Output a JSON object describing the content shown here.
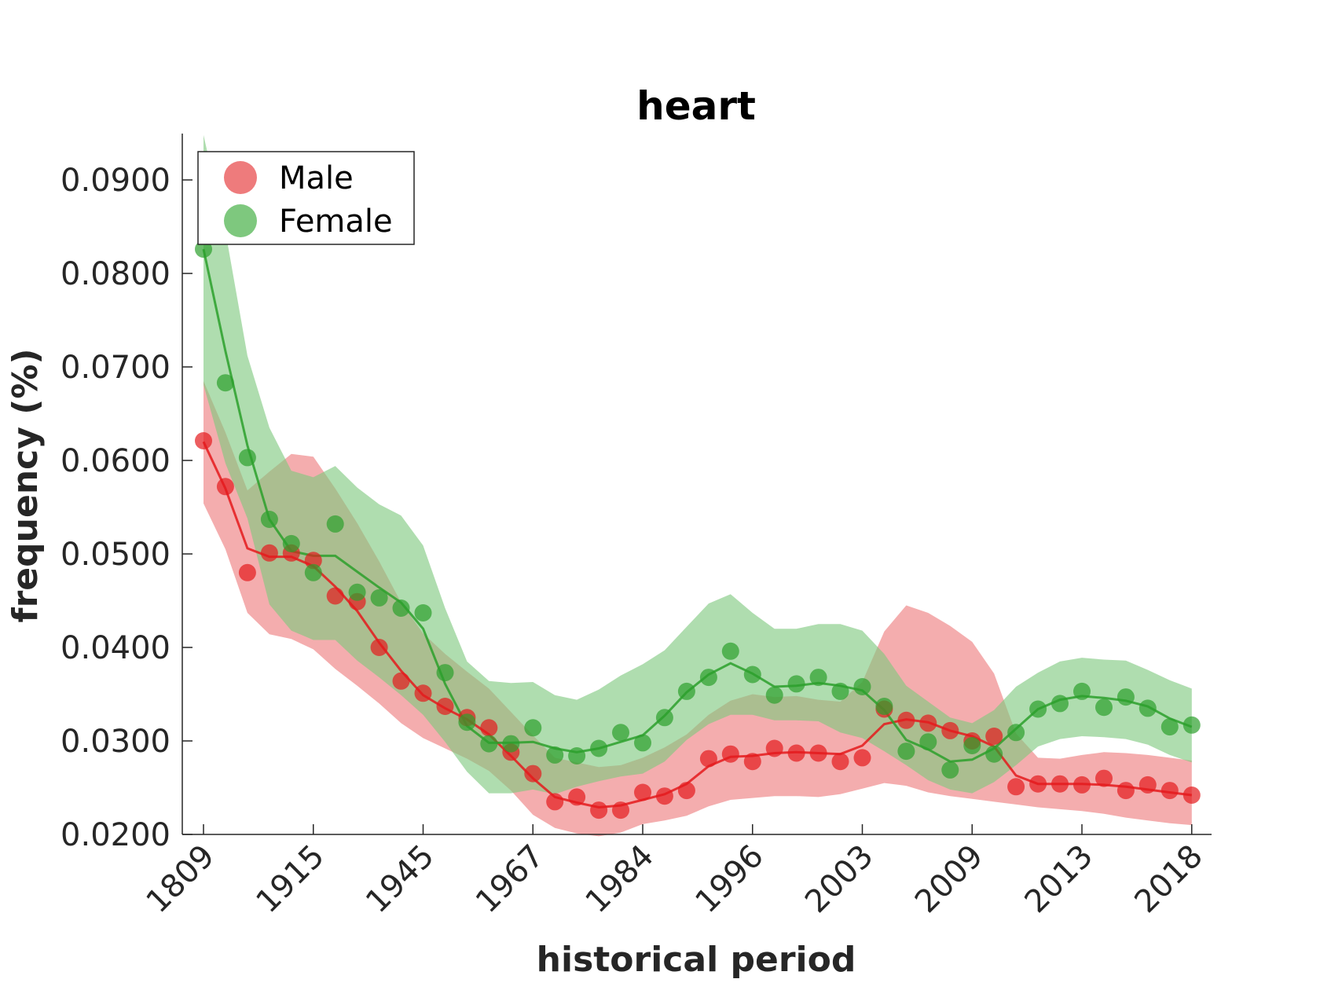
{
  "chart_data": {
    "type": "line",
    "title": "heart",
    "xlabel": "historical period",
    "ylabel": "frequency (%)",
    "ylim": [
      0.02,
      0.095
    ],
    "y_ticks": [
      "0.0200",
      "0.0300",
      "0.0400",
      "0.0500",
      "0.0600",
      "0.0700",
      "0.0800",
      "0.0900"
    ],
    "y_tick_values": [
      0.02,
      0.03,
      0.04,
      0.05,
      0.06,
      0.07,
      0.08,
      0.09
    ],
    "x_ticks": [
      "1809",
      "1915",
      "1945",
      "1967",
      "1984",
      "1996",
      "2003",
      "2009",
      "2013",
      "2018"
    ],
    "x_tick_index": [
      0,
      5,
      10,
      15,
      20,
      25,
      30,
      35,
      40,
      45
    ],
    "n_points": 46,
    "legend_position": "top-left",
    "grid": false,
    "series": [
      {
        "name": "Male",
        "color": "#e41a1c",
        "band_color": "#ee7b7c",
        "points": [
          0.0621,
          0.0572,
          0.048,
          0.0501,
          0.0501,
          0.0493,
          0.0455,
          0.0449,
          0.04,
          0.0364,
          0.0351,
          0.0337,
          0.0325,
          0.0314,
          0.0288,
          0.0265,
          0.0235,
          0.024,
          0.0226,
          0.0226,
          0.0245,
          0.0241,
          0.0247,
          0.0281,
          0.0286,
          0.0278,
          0.0292,
          0.0287,
          0.0287,
          0.0278,
          0.0282,
          0.0334,
          0.0322,
          0.0319,
          0.0311,
          0.03,
          0.0305,
          0.0251,
          0.0254,
          0.0254,
          0.0253,
          0.026,
          0.0247,
          0.0253,
          0.0247,
          0.0242
        ],
        "line": [
          0.062,
          0.057,
          0.0506,
          0.0497,
          0.0497,
          0.0487,
          0.0465,
          0.0439,
          0.0405,
          0.0375,
          0.0349,
          0.0335,
          0.0323,
          0.0307,
          0.0284,
          0.026,
          0.024,
          0.0234,
          0.0229,
          0.0231,
          0.0237,
          0.0243,
          0.0254,
          0.0273,
          0.0283,
          0.0284,
          0.0287,
          0.0288,
          0.0287,
          0.0286,
          0.0295,
          0.0318,
          0.0323,
          0.032,
          0.0311,
          0.0305,
          0.0294,
          0.0263,
          0.0254,
          0.0254,
          0.0254,
          0.0253,
          0.0251,
          0.0248,
          0.0245,
          0.0242
        ],
        "upper": [
          0.0685,
          0.063,
          0.0568,
          0.0588,
          0.0607,
          0.0604,
          0.057,
          0.0533,
          0.0492,
          0.0448,
          0.0415,
          0.0393,
          0.0374,
          0.0356,
          0.0331,
          0.0306,
          0.0282,
          0.0277,
          0.0272,
          0.0274,
          0.0282,
          0.0293,
          0.0307,
          0.0328,
          0.0343,
          0.035,
          0.0347,
          0.0348,
          0.0344,
          0.0342,
          0.0363,
          0.0417,
          0.0445,
          0.0437,
          0.0423,
          0.0406,
          0.0372,
          0.0308,
          0.0282,
          0.0281,
          0.0285,
          0.0288,
          0.0287,
          0.0285,
          0.0282,
          0.0279
        ],
        "lower": [
          0.0554,
          0.0505,
          0.0437,
          0.0414,
          0.0409,
          0.0398,
          0.0377,
          0.0359,
          0.034,
          0.0319,
          0.0303,
          0.0292,
          0.0281,
          0.0268,
          0.0247,
          0.0221,
          0.0207,
          0.0201,
          0.0198,
          0.0202,
          0.0211,
          0.0215,
          0.022,
          0.023,
          0.0237,
          0.0239,
          0.0241,
          0.0241,
          0.024,
          0.0243,
          0.0249,
          0.0255,
          0.0252,
          0.0245,
          0.0241,
          0.0238,
          0.0235,
          0.0232,
          0.0229,
          0.0227,
          0.0225,
          0.0222,
          0.0218,
          0.0215,
          0.0212,
          0.021
        ]
      },
      {
        "name": "Female",
        "color": "#2ca02c",
        "band_color": "#7ec87e",
        "points": [
          0.0826,
          0.0683,
          0.0603,
          0.0537,
          0.0511,
          0.048,
          0.0532,
          0.0459,
          0.0453,
          0.0442,
          0.0437,
          0.0373,
          0.032,
          0.0297,
          0.0297,
          0.0314,
          0.0285,
          0.0284,
          0.0292,
          0.0309,
          0.0298,
          0.0325,
          0.0353,
          0.0368,
          0.0396,
          0.0371,
          0.0349,
          0.0361,
          0.0368,
          0.0353,
          0.0358,
          0.0337,
          0.0289,
          0.0299,
          0.0269,
          0.0295,
          0.0286,
          0.0309,
          0.0334,
          0.034,
          0.0353,
          0.0336,
          0.0347,
          0.0335,
          0.0315,
          0.0317
        ],
        "line": [
          0.0826,
          0.0717,
          0.0616,
          0.0537,
          0.0503,
          0.0498,
          0.0498,
          0.0481,
          0.0464,
          0.0448,
          0.042,
          0.0361,
          0.0316,
          0.0298,
          0.0298,
          0.0299,
          0.0292,
          0.0288,
          0.0292,
          0.0299,
          0.0306,
          0.0327,
          0.0352,
          0.0371,
          0.0383,
          0.0372,
          0.0358,
          0.0359,
          0.0362,
          0.0359,
          0.0354,
          0.0333,
          0.0301,
          0.0291,
          0.0278,
          0.028,
          0.0292,
          0.0313,
          0.0334,
          0.0344,
          0.0348,
          0.0346,
          0.0343,
          0.0337,
          0.0324,
          0.0315
        ],
        "upper": [
          0.0948,
          0.0845,
          0.0712,
          0.0635,
          0.0589,
          0.0582,
          0.0594,
          0.0571,
          0.0553,
          0.0541,
          0.0509,
          0.0442,
          0.0385,
          0.0364,
          0.0362,
          0.0363,
          0.0349,
          0.0344,
          0.0355,
          0.037,
          0.0382,
          0.0397,
          0.0422,
          0.0447,
          0.0457,
          0.0437,
          0.042,
          0.042,
          0.0425,
          0.0425,
          0.0418,
          0.0393,
          0.0359,
          0.0342,
          0.0325,
          0.0319,
          0.0333,
          0.0358,
          0.0373,
          0.0385,
          0.0389,
          0.0387,
          0.0386,
          0.0376,
          0.0365,
          0.0356
        ],
        "lower": [
          0.0681,
          0.0597,
          0.0538,
          0.0446,
          0.0418,
          0.0408,
          0.0408,
          0.0386,
          0.0368,
          0.0349,
          0.0328,
          0.0299,
          0.0267,
          0.0244,
          0.0244,
          0.0248,
          0.0243,
          0.0251,
          0.0257,
          0.0262,
          0.0265,
          0.0278,
          0.0301,
          0.0318,
          0.0328,
          0.0328,
          0.0322,
          0.0322,
          0.0321,
          0.0309,
          0.0303,
          0.0289,
          0.0274,
          0.0258,
          0.0248,
          0.0244,
          0.0256,
          0.0274,
          0.0294,
          0.0302,
          0.0305,
          0.0304,
          0.0302,
          0.0296,
          0.0285,
          0.0277
        ]
      }
    ]
  }
}
